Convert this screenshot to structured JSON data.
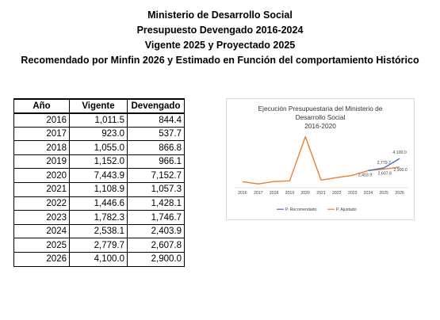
{
  "header": {
    "line1": "Ministerio de Desarrollo Social",
    "line2": "Presupuesto Devengado 2016-2024",
    "line3": "Vigente 2025 y Proyectado 2025",
    "line4": "Recomendado por Minfin 2026 y Estimado en Función del comportamiento Histórico"
  },
  "table": {
    "headers": [
      "Año",
      "Vigente",
      "Devengado"
    ],
    "rows": [
      [
        "2016",
        "1,011.5",
        "844.4"
      ],
      [
        "2017",
        "923.0",
        "537.7"
      ],
      [
        "2018",
        "1,055.0",
        "866.8"
      ],
      [
        "2019",
        "1,152.0",
        "966.1"
      ],
      [
        "2020",
        "7,443.9",
        "7,152.7"
      ],
      [
        "2021",
        "1,108.9",
        "1,057.3"
      ],
      [
        "2022",
        "1,446.6",
        "1,428.1"
      ],
      [
        "2023",
        "1,782.3",
        "1,746.7"
      ],
      [
        "2024",
        "2,538.1",
        "2,403.9"
      ],
      [
        "2025",
        "2,779.7",
        "2,607.8"
      ],
      [
        "2026",
        "4,100.0",
        "2,900.0"
      ]
    ]
  },
  "chart_data": {
    "type": "line",
    "title_lines": [
      "Ejecución Presupuestaria del Ministerio de",
      "Desarrollo Social",
      "2016-2020"
    ],
    "x": [
      "2016",
      "2017",
      "2018",
      "2019",
      "2020",
      "2021",
      "2022",
      "2023",
      "2024",
      "2025",
      "2026"
    ],
    "series": [
      {
        "name": "P. Recomendado",
        "color": "#4472c4",
        "values": [
          null,
          null,
          null,
          null,
          null,
          null,
          null,
          null,
          2403.9,
          2779.7,
          4100.0
        ]
      },
      {
        "name": "P. Ajustado",
        "color": "#ed7d31",
        "values": [
          844.4,
          537.7,
          866.8,
          966.1,
          7152.7,
          1057.3,
          1428.1,
          1746.7,
          2403.9,
          2607.8,
          2900.0
        ]
      }
    ],
    "data_labels": [
      {
        "x": "2024",
        "text": "2,403.9"
      },
      {
        "x": "2025",
        "text": "2,607.8"
      },
      {
        "x": "2025",
        "text": "2,779.7"
      },
      {
        "x": "2026",
        "text": "4,100.0"
      },
      {
        "x": "2026",
        "text": "2,900.0"
      }
    ],
    "ylim": [
      0,
      8000
    ],
    "grid": false,
    "legend": "bottom"
  }
}
